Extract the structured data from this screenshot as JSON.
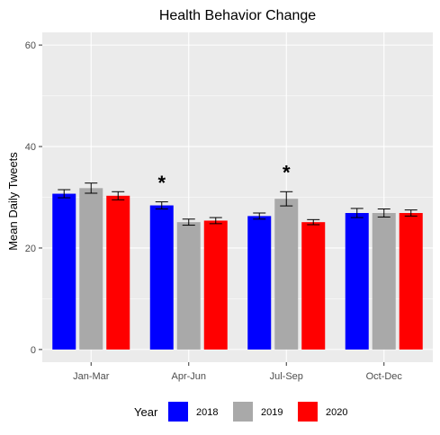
{
  "chart_data": {
    "type": "bar",
    "title": "Health Behavior Change",
    "xlabel": "",
    "ylabel": "Mean Daily Tweets",
    "ylim": [
      -2.5,
      62.5
    ],
    "yticks": [
      0,
      20,
      40,
      60
    ],
    "categories": [
      "Jan-Mar",
      "Apr-Jun",
      "Jul-Sep",
      "Oct-Dec"
    ],
    "series": [
      {
        "name": "2018",
        "color": "#0000ff",
        "values": [
          30.7,
          28.4,
          26.3,
          26.9
        ],
        "errors": [
          0.8,
          0.7,
          0.6,
          0.9
        ]
      },
      {
        "name": "2019",
        "color": "#a9a9a9",
        "values": [
          31.8,
          25.1,
          29.7,
          26.9
        ],
        "errors": [
          1.0,
          0.6,
          1.4,
          0.8
        ]
      },
      {
        "name": "2020",
        "color": "#ff0000",
        "values": [
          30.3,
          25.4,
          25.1,
          26.9
        ],
        "errors": [
          0.8,
          0.6,
          0.5,
          0.6
        ]
      }
    ],
    "annotations": [
      {
        "category": "Apr-Jun",
        "series_index": 0,
        "text": "*",
        "y": 34
      },
      {
        "category": "Jul-Sep",
        "series_index": 1,
        "text": "*",
        "y": 36
      }
    ],
    "legend": {
      "title": "Year",
      "position": "bottom"
    },
    "grid": true,
    "background": "#ebebeb",
    "gridline_color": "#ffffff"
  }
}
